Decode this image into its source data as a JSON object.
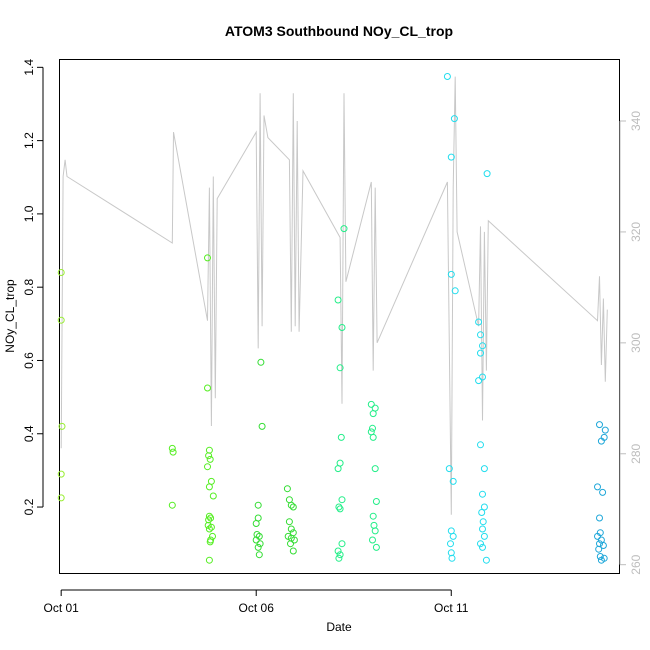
{
  "chart_data": {
    "type": "scatter",
    "title": "ATOM3 Southbound NOy_CL_trop",
    "xlabel": "Date",
    "ylabel": "NOy_CL_trop",
    "x_ticks": [
      {
        "day": 1,
        "label": "Oct 01"
      },
      {
        "day": 6,
        "label": "Oct 06"
      },
      {
        "day": 11,
        "label": "Oct 11"
      }
    ],
    "xlim": [
      0.97,
      15.3
    ],
    "ylim": [
      0.02,
      1.42
    ],
    "y_ticks": [
      0.2,
      0.4,
      0.6,
      0.8,
      1.0,
      1.2,
      1.4
    ],
    "y2lim": [
      258.5,
      351
    ],
    "y2_ticks": [
      260,
      280,
      300,
      320,
      340
    ],
    "grid": false,
    "series": [
      {
        "color": "#99ee33",
        "points": [
          [
            1.0,
            0.84
          ],
          [
            1.0,
            0.71
          ],
          [
            1.02,
            0.42
          ],
          [
            1.0,
            0.29
          ],
          [
            1.0,
            0.225
          ]
        ]
      },
      {
        "color": "#55ee22",
        "points": [
          [
            3.85,
            0.36
          ],
          [
            3.87,
            0.35
          ],
          [
            3.85,
            0.205
          ],
          [
            4.75,
            0.88
          ],
          [
            4.75,
            0.525
          ],
          [
            4.8,
            0.355
          ],
          [
            4.78,
            0.34
          ],
          [
            4.82,
            0.33
          ],
          [
            4.85,
            0.27
          ],
          [
            4.8,
            0.255
          ],
          [
            4.75,
            0.31
          ],
          [
            4.9,
            0.23
          ],
          [
            4.8,
            0.175
          ],
          [
            4.83,
            0.17
          ],
          [
            4.78,
            0.165
          ],
          [
            4.77,
            0.15
          ],
          [
            4.8,
            0.14
          ],
          [
            4.85,
            0.145
          ],
          [
            4.88,
            0.12
          ],
          [
            4.83,
            0.11
          ],
          [
            4.82,
            0.105
          ],
          [
            4.8,
            0.055
          ]
        ]
      },
      {
        "color": "#33dd33",
        "points": [
          [
            6.12,
            0.595
          ],
          [
            6.15,
            0.42
          ],
          [
            6.05,
            0.205
          ],
          [
            6.0,
            0.155
          ],
          [
            6.05,
            0.17
          ],
          [
            6.02,
            0.125
          ],
          [
            6.08,
            0.12
          ],
          [
            6.0,
            0.11
          ],
          [
            6.1,
            0.1
          ],
          [
            6.05,
            0.09
          ],
          [
            6.08,
            0.07
          ],
          [
            6.8,
            0.25
          ],
          [
            6.85,
            0.22
          ],
          [
            6.9,
            0.205
          ],
          [
            6.95,
            0.2
          ],
          [
            6.85,
            0.16
          ],
          [
            6.9,
            0.14
          ],
          [
            6.95,
            0.13
          ],
          [
            6.82,
            0.12
          ],
          [
            6.9,
            0.115
          ],
          [
            6.98,
            0.11
          ],
          [
            6.88,
            0.1
          ],
          [
            6.95,
            0.08
          ]
        ]
      },
      {
        "color": "#22ee88",
        "points": [
          [
            8.1,
            0.765
          ],
          [
            8.25,
            0.96
          ],
          [
            8.2,
            0.69
          ],
          [
            8.15,
            0.58
          ],
          [
            8.18,
            0.39
          ],
          [
            8.15,
            0.32
          ],
          [
            8.1,
            0.305
          ],
          [
            8.2,
            0.22
          ],
          [
            8.12,
            0.2
          ],
          [
            8.15,
            0.195
          ],
          [
            8.1,
            0.08
          ],
          [
            8.15,
            0.07
          ],
          [
            8.12,
            0.06
          ],
          [
            8.2,
            0.1
          ],
          [
            8.95,
            0.48
          ],
          [
            9.0,
            0.455
          ],
          [
            9.05,
            0.47
          ],
          [
            8.98,
            0.415
          ],
          [
            9.0,
            0.39
          ],
          [
            8.95,
            0.405
          ],
          [
            9.05,
            0.305
          ],
          [
            9.08,
            0.215
          ],
          [
            9.0,
            0.175
          ],
          [
            9.02,
            0.15
          ],
          [
            9.05,
            0.135
          ],
          [
            8.98,
            0.11
          ],
          [
            9.08,
            0.09
          ]
        ]
      },
      {
        "color": "#22ddee",
        "points": [
          [
            10.9,
            1.375
          ],
          [
            11.08,
            1.26
          ],
          [
            11.0,
            1.155
          ],
          [
            11.0,
            0.835
          ],
          [
            11.1,
            0.79
          ],
          [
            10.95,
            0.305
          ],
          [
            11.05,
            0.27
          ],
          [
            11.0,
            0.135
          ],
          [
            11.05,
            0.12
          ],
          [
            10.98,
            0.1
          ],
          [
            11.0,
            0.075
          ],
          [
            11.02,
            0.06
          ],
          [
            11.7,
            0.705
          ],
          [
            11.75,
            0.67
          ],
          [
            11.8,
            0.64
          ],
          [
            11.75,
            0.62
          ],
          [
            11.8,
            0.555
          ],
          [
            11.7,
            0.545
          ],
          [
            11.75,
            0.37
          ],
          [
            11.85,
            0.305
          ],
          [
            11.92,
            1.11
          ],
          [
            11.8,
            0.235
          ],
          [
            11.85,
            0.2
          ],
          [
            11.78,
            0.185
          ],
          [
            11.82,
            0.16
          ],
          [
            11.8,
            0.14
          ],
          [
            11.85,
            0.12
          ],
          [
            11.75,
            0.1
          ],
          [
            11.8,
            0.09
          ],
          [
            11.9,
            0.055
          ]
        ]
      },
      {
        "color": "#1ea7d9",
        "points": [
          [
            14.8,
            0.425
          ],
          [
            14.95,
            0.41
          ],
          [
            14.92,
            0.39
          ],
          [
            14.85,
            0.38
          ],
          [
            14.75,
            0.255
          ],
          [
            14.88,
            0.24
          ],
          [
            14.8,
            0.17
          ],
          [
            14.82,
            0.13
          ],
          [
            14.75,
            0.12
          ],
          [
            14.85,
            0.11
          ],
          [
            14.8,
            0.1
          ],
          [
            14.9,
            0.095
          ],
          [
            14.78,
            0.085
          ],
          [
            14.82,
            0.065
          ],
          [
            14.92,
            0.06
          ],
          [
            14.85,
            0.055
          ]
        ]
      }
    ],
    "altitude_line": {
      "color": "#c8c8c8",
      "points": [
        [
          1.0,
          281
        ],
        [
          1.05,
          330
        ],
        [
          1.1,
          333
        ],
        [
          1.15,
          330
        ],
        [
          3.85,
          318
        ],
        [
          3.88,
          338
        ],
        [
          4.75,
          304
        ],
        [
          4.8,
          328
        ],
        [
          4.85,
          285
        ],
        [
          4.9,
          330
        ],
        [
          4.95,
          290
        ],
        [
          5.0,
          326
        ],
        [
          6.0,
          338
        ],
        [
          6.05,
          299
        ],
        [
          6.1,
          345
        ],
        [
          6.15,
          303
        ],
        [
          6.2,
          341
        ],
        [
          6.3,
          337
        ],
        [
          6.85,
          333
        ],
        [
          6.9,
          302
        ],
        [
          6.95,
          345
        ],
        [
          7.0,
          303
        ],
        [
          7.05,
          340
        ],
        [
          7.1,
          302
        ],
        [
          7.2,
          331
        ],
        [
          8.15,
          319
        ],
        [
          8.2,
          289
        ],
        [
          8.25,
          345
        ],
        [
          8.3,
          311
        ],
        [
          8.95,
          329
        ],
        [
          9.0,
          295
        ],
        [
          9.05,
          328
        ],
        [
          9.1,
          300
        ],
        [
          10.9,
          329
        ],
        [
          11.0,
          269
        ],
        [
          11.05,
          328
        ],
        [
          11.1,
          348
        ],
        [
          11.15,
          320
        ],
        [
          11.7,
          303
        ],
        [
          11.75,
          321
        ],
        [
          11.8,
          286
        ],
        [
          11.85,
          320
        ],
        [
          11.9,
          295
        ],
        [
          11.95,
          322
        ],
        [
          14.75,
          304
        ],
        [
          14.8,
          312
        ],
        [
          14.85,
          296
        ],
        [
          14.9,
          308
        ],
        [
          14.95,
          293
        ],
        [
          15.0,
          306
        ]
      ]
    }
  }
}
